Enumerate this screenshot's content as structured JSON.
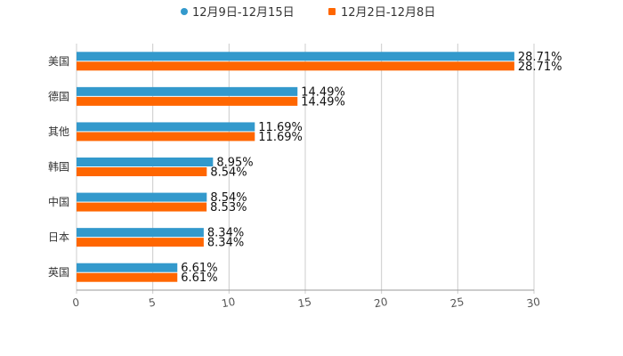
{
  "chart_data": {
    "type": "bar",
    "orientation": "horizontal",
    "title": "",
    "xlabel": "",
    "ylabel": "",
    "xlim": [
      0,
      30
    ],
    "ticks": [
      "0",
      "5",
      "10",
      "15",
      "20",
      "25",
      "30"
    ],
    "grid": true,
    "legend_position": "top",
    "categories": [
      "美国",
      "德国",
      "其他",
      "韩国",
      "中国",
      "日本",
      "英国"
    ],
    "series": [
      {
        "name": "12月9日-12月15日",
        "color": "#3399cc",
        "values": [
          28.71,
          14.49,
          11.69,
          8.95,
          8.54,
          8.34,
          6.61
        ],
        "labels": [
          "28.71%",
          "14.49%",
          "11.69%",
          "8.95%",
          "8.54%",
          "8.34%",
          "6.61%"
        ]
      },
      {
        "name": "12月2日-12月8日",
        "color": "#ff6600",
        "values": [
          28.71,
          14.49,
          11.69,
          8.54,
          8.53,
          8.34,
          6.61
        ],
        "labels": [
          "28.71%",
          "14.49%",
          "11.69%",
          "8.54%",
          "8.53%",
          "8.34%",
          "6.61%"
        ]
      }
    ]
  }
}
